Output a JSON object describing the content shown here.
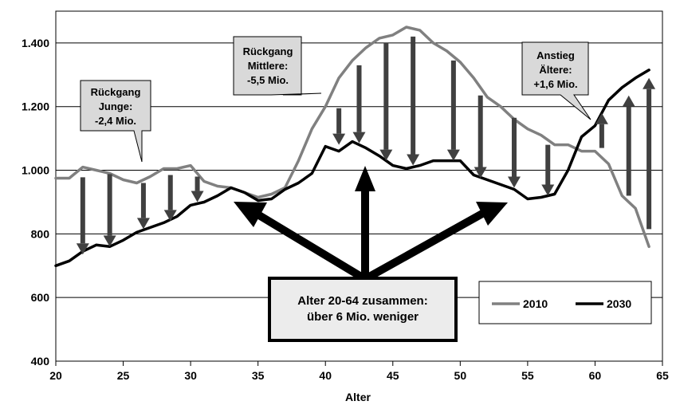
{
  "chart_data": {
    "type": "line",
    "title": "",
    "xlabel": "Alter",
    "ylabel": "",
    "xlim": [
      20,
      65
    ],
    "ylim": [
      400,
      1500
    ],
    "xticks": [
      "20",
      "25",
      "30",
      "35",
      "40",
      "45",
      "50",
      "55",
      "60",
      "65"
    ],
    "yticks": [
      "400",
      "600",
      "800",
      "1.000",
      "1.200",
      "1.400"
    ],
    "grid": "horizontal",
    "legend": "bottom-right",
    "colors": {
      "2010": "#808080",
      "2030": "#000000",
      "arrows": "#404040",
      "callout_fill": "#d9d9d9"
    },
    "series": [
      {
        "name": "2010",
        "x": [
          20,
          21,
          22,
          23,
          24,
          25,
          26,
          27,
          28,
          29,
          30,
          31,
          32,
          33,
          34,
          35,
          36,
          37,
          38,
          39,
          40,
          41,
          42,
          43,
          44,
          45,
          46,
          47,
          48,
          49,
          50,
          51,
          52,
          53,
          54,
          55,
          56,
          57,
          58,
          59,
          60,
          61,
          62,
          63,
          64
        ],
        "values": [
          975,
          975,
          1010,
          1000,
          990,
          970,
          960,
          980,
          1005,
          1005,
          1015,
          965,
          950,
          945,
          930,
          915,
          925,
          945,
          1030,
          1130,
          1200,
          1290,
          1345,
          1385,
          1415,
          1425,
          1450,
          1440,
          1400,
          1375,
          1340,
          1290,
          1230,
          1200,
          1160,
          1130,
          1110,
          1080,
          1080,
          1060,
          1060,
          1020,
          920,
          880,
          760
        ]
      },
      {
        "name": "2030",
        "x": [
          20,
          21,
          22,
          23,
          24,
          25,
          26,
          27,
          28,
          29,
          30,
          31,
          32,
          33,
          34,
          35,
          36,
          37,
          38,
          39,
          40,
          41,
          42,
          43,
          44,
          45,
          46,
          47,
          48,
          49,
          50,
          51,
          52,
          53,
          54,
          55,
          56,
          57,
          58,
          59,
          60,
          61,
          62,
          63,
          64
        ],
        "values": [
          700,
          715,
          745,
          765,
          760,
          780,
          805,
          820,
          835,
          855,
          890,
          900,
          920,
          945,
          930,
          905,
          910,
          940,
          960,
          990,
          1075,
          1060,
          1090,
          1070,
          1045,
          1015,
          1005,
          1015,
          1030,
          1030,
          1030,
          985,
          970,
          955,
          940,
          910,
          915,
          925,
          1000,
          1105,
          1140,
          1220,
          1260,
          1290,
          1315
        ]
      }
    ],
    "annotations": {
      "young": [
        "Rückgang",
        "Junge:",
        "-2,4 Mio."
      ],
      "middle": [
        "Rückgang",
        "Mittlere:",
        "-5,5 Mio."
      ],
      "older": [
        "Anstieg",
        "Ältere:",
        "+1,6 Mio."
      ],
      "center": [
        "Alter 20-64 zusammen:",
        "über 6 Mio. weniger"
      ]
    },
    "change_arrows": [
      {
        "x": 22,
        "from": 978,
        "to": 735
      },
      {
        "x": 24,
        "from": 988,
        "to": 760
      },
      {
        "x": 26.5,
        "from": 960,
        "to": 815
      },
      {
        "x": 28.5,
        "from": 985,
        "to": 840
      },
      {
        "x": 30.5,
        "from": 980,
        "to": 900
      },
      {
        "x": 41,
        "from": 1195,
        "to": 1080
      },
      {
        "x": 42.5,
        "from": 1330,
        "to": 1085
      },
      {
        "x": 44.5,
        "from": 1400,
        "to": 1030
      },
      {
        "x": 46.5,
        "from": 1420,
        "to": 1015
      },
      {
        "x": 49.5,
        "from": 1345,
        "to": 1030
      },
      {
        "x": 51.5,
        "from": 1235,
        "to": 975
      },
      {
        "x": 54,
        "from": 1165,
        "to": 945
      },
      {
        "x": 56.5,
        "from": 1080,
        "to": 920
      },
      {
        "x": 60.5,
        "from": 1070,
        "to": 1180
      },
      {
        "x": 62.5,
        "from": 920,
        "to": 1235
      },
      {
        "x": 64,
        "from": 815,
        "to": 1290
      }
    ]
  }
}
